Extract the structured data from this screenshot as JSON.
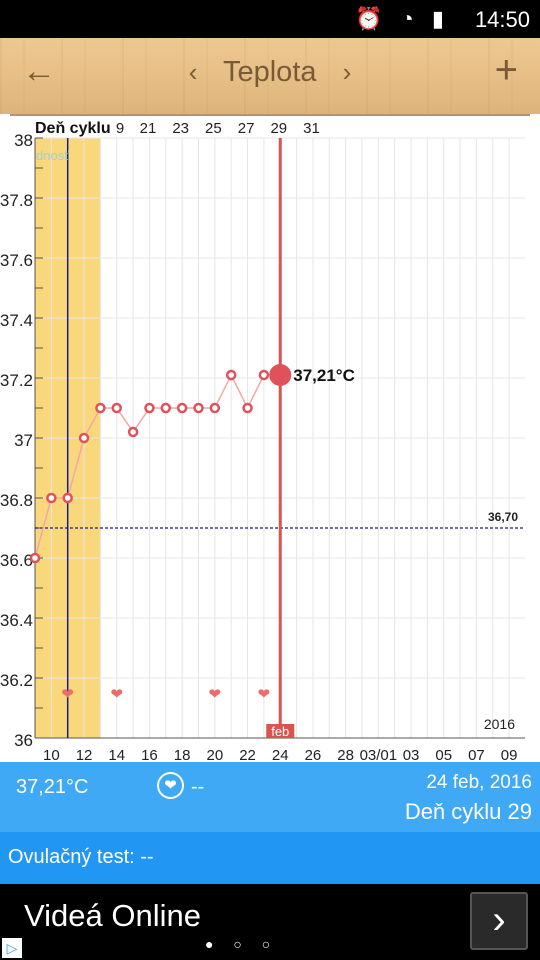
{
  "status_bar": {
    "time": "14:50",
    "icons": "⏰ ◔ ▮"
  },
  "toolbar": {
    "back_icon": "←",
    "prev_icon": "‹",
    "title": "Teplota",
    "next_icon": "›",
    "add_icon": "+"
  },
  "chart_data": {
    "type": "line",
    "top_label": "Deň cyklu",
    "fertility_label": "dnosť",
    "top_ticks": [
      "9",
      "21",
      "23",
      "25",
      "27",
      "29",
      "31"
    ],
    "bottom_ticks": [
      "10",
      "12",
      "14",
      "16",
      "18",
      "20",
      "22",
      "24",
      "26",
      "28",
      "03/01",
      "03",
      "05",
      "07",
      "09"
    ],
    "y_ticks": [
      "38",
      "37.8",
      "37.6",
      "37.4",
      "37.2",
      "37",
      "36.8",
      "36.6",
      "36.4",
      "36.2",
      "36"
    ],
    "ylim": [
      36,
      38
    ],
    "x_start_day": 9,
    "points": [
      {
        "day": 9,
        "value": 36.6
      },
      {
        "day": 10,
        "value": 36.8
      },
      {
        "day": 11,
        "value": 36.8
      },
      {
        "day": 12,
        "value": 37.0
      },
      {
        "day": 13,
        "value": 37.1
      },
      {
        "day": 14,
        "value": 37.1
      },
      {
        "day": 15,
        "value": 37.02
      },
      {
        "day": 16,
        "value": 37.1
      },
      {
        "day": 17,
        "value": 37.1
      },
      {
        "day": 18,
        "value": 37.1
      },
      {
        "day": 19,
        "value": 37.1
      },
      {
        "day": 20,
        "value": 37.1
      },
      {
        "day": 21,
        "value": 37.21
      },
      {
        "day": 22,
        "value": 37.1
      },
      {
        "day": 23,
        "value": 37.21
      },
      {
        "day": 24,
        "value": 37.21
      }
    ],
    "hearts": [
      11,
      14,
      20,
      23
    ],
    "fertile_window": [
      9,
      13
    ],
    "ovulation_day": 11,
    "selected_day": 24,
    "selected_label": "37,21°C",
    "coverline": 36.7,
    "coverline_label": "36,70",
    "month_label": "feb",
    "year_label": "2016",
    "colors": {
      "line": "#f4a7a7",
      "marker": "#e0525a",
      "fertile": "#f8d87a",
      "ovulation": "#1a1a8c",
      "selected": "#d9534f",
      "coverline": "#1a1a8c"
    }
  },
  "info": {
    "temp": "37,21°C",
    "heart_icon": "❤",
    "heart_value": "--",
    "date": "24 feb, 2016",
    "cycle_day": "Deň cyklu 29"
  },
  "ovulation_test": {
    "text": "Ovulačný test: --"
  },
  "ad": {
    "title": "Videá Online",
    "next_icon": "›",
    "dots": "● ○ ○",
    "ad_choice_icon": "▷"
  }
}
